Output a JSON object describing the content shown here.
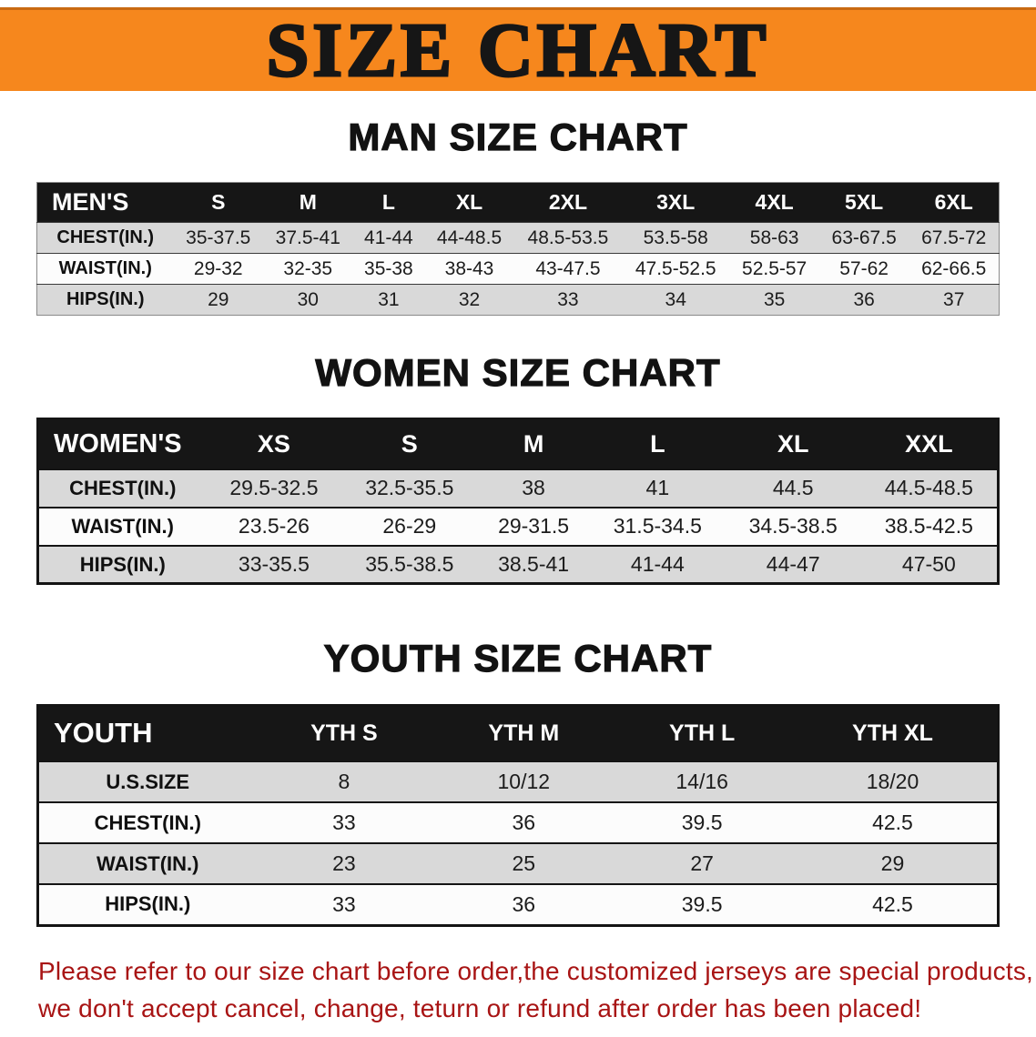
{
  "banner": {
    "title": "SIZE CHART"
  },
  "colors": {
    "banner_orange": "#F6871D",
    "table_header_black": "#161616",
    "row_gray": "#D9D9D9",
    "disclaimer_red": "#A81414"
  },
  "men": {
    "heading": "MAN SIZE CHART",
    "header": [
      "MEN'S",
      "S",
      "M",
      "L",
      "XL",
      "2XL",
      "3XL",
      "4XL",
      "5XL",
      "6XL"
    ],
    "rows": [
      {
        "label": "CHEST(IN.)",
        "values": [
          "35-37.5",
          "37.5-41",
          "41-44",
          "44-48.5",
          "48.5-53.5",
          "53.5-58",
          "58-63",
          "63-67.5",
          "67.5-72"
        ]
      },
      {
        "label": "WAIST(IN.)",
        "values": [
          "29-32",
          "32-35",
          "35-38",
          "38-43",
          "43-47.5",
          "47.5-52.5",
          "52.5-57",
          "57-62",
          "62-66.5"
        ]
      },
      {
        "label": "HIPS(IN.)",
        "values": [
          "29",
          "30",
          "31",
          "32",
          "33",
          "34",
          "35",
          "36",
          "37"
        ]
      }
    ]
  },
  "women": {
    "heading": "WOMEN SIZE CHART",
    "header": [
      "WOMEN'S",
      "XS",
      "S",
      "M",
      "L",
      "XL",
      "XXL"
    ],
    "rows": [
      {
        "label": "CHEST(IN.)",
        "values": [
          "29.5-32.5",
          "32.5-35.5",
          "38",
          "41",
          "44.5",
          "44.5-48.5"
        ]
      },
      {
        "label": "WAIST(IN.)",
        "values": [
          "23.5-26",
          "26-29",
          "29-31.5",
          "31.5-34.5",
          "34.5-38.5",
          "38.5-42.5"
        ]
      },
      {
        "label": "HIPS(IN.)",
        "values": [
          "33-35.5",
          "35.5-38.5",
          "38.5-41",
          "41-44",
          "44-47",
          "47-50"
        ]
      }
    ]
  },
  "youth": {
    "heading": "YOUTH SIZE CHART",
    "header": [
      "YOUTH",
      "YTH S",
      "YTH M",
      "YTH L",
      "YTH XL"
    ],
    "rows": [
      {
        "label": "U.S.SIZE",
        "values": [
          "8",
          "10/12",
          "14/16",
          "18/20"
        ]
      },
      {
        "label": "CHEST(IN.)",
        "values": [
          "33",
          "36",
          "39.5",
          "42.5"
        ]
      },
      {
        "label": "WAIST(IN.)",
        "values": [
          "23",
          "25",
          "27",
          "29"
        ]
      },
      {
        "label": "HIPS(IN.)",
        "values": [
          "33",
          "36",
          "39.5",
          "42.5"
        ]
      }
    ]
  },
  "disclaimer": {
    "line1": "Please refer to our size chart before order,the customized jerseys are special products,",
    "line2": "we don't accept cancel, change, teturn or refund after order has been placed!"
  }
}
